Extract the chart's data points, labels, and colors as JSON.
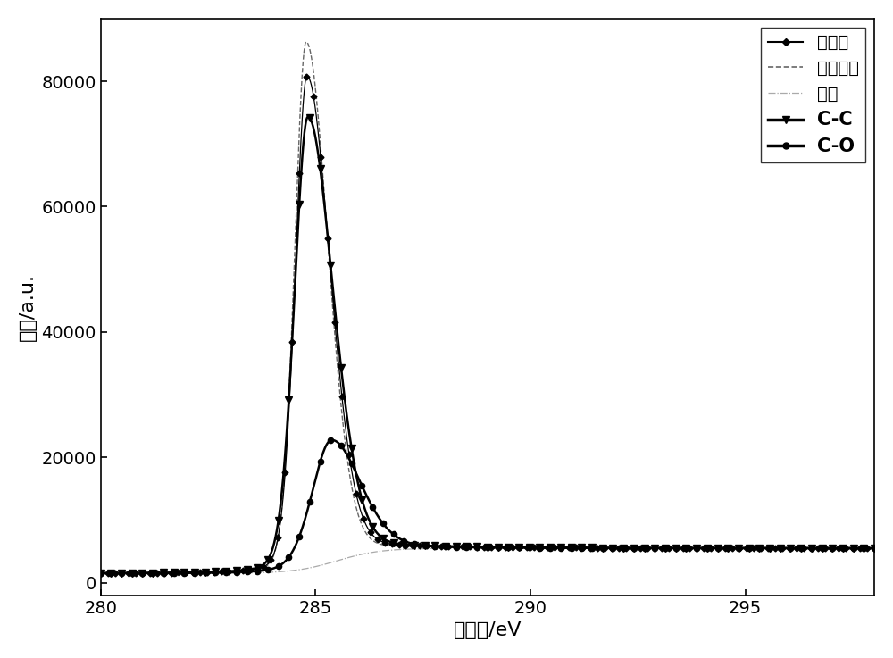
{
  "xmin": 280,
  "xmax": 298,
  "ymin": -2000,
  "ymax": 90000,
  "xlabel": "结合能/eV",
  "ylabel": "强度/a.u.",
  "color_source": "#000000",
  "color_fit": "#666666",
  "color_baseline": "#aaaaaa",
  "color_cc": "#000000",
  "color_co": "#000000",
  "legend_source": "源数据",
  "legend_fit": "拟合数据",
  "legend_baseline": "基线",
  "legend_cc": "C-C",
  "legend_co": "C-O",
  "yticks": [
    0,
    20000,
    40000,
    60000,
    80000
  ],
  "xticks": [
    280,
    285,
    290,
    295
  ]
}
